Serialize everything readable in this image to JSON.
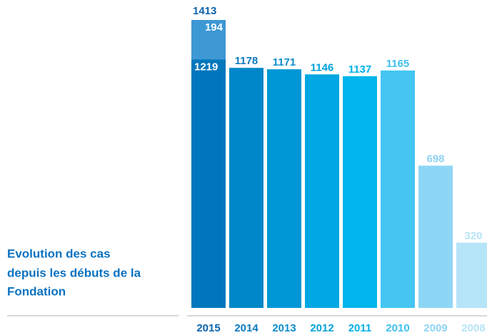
{
  "chart_data": {
    "type": "stacked_bar",
    "title": [
      "Evolution des cas",
      "depuis les débuts de la",
      "Fondation"
    ],
    "categories": [
      "2015",
      "2014",
      "2013",
      "2012",
      "2011",
      "2010",
      "2009",
      "2008"
    ],
    "series": [
      {
        "values": [
          1219,
          1178,
          1171,
          1146,
          1137,
          1165,
          698,
          320
        ],
        "colors": [
          "#0077bd",
          "#0087c9",
          "#0097d6",
          "#00a7e2",
          "#00b5ec",
          "#45c6f2",
          "#8ed6f5",
          "#b6e4f8"
        ]
      },
      {
        "values": [
          194,
          null,
          null,
          null,
          null,
          null,
          null,
          null
        ],
        "color": "#3d98d4"
      }
    ],
    "totals": [
      1413,
      null,
      null,
      null,
      null,
      null,
      null,
      null
    ],
    "label_colors": [
      "#0a64ae",
      "#0a7ac0",
      "#0a8ccd",
      "#00a2dc",
      "#00afe6",
      "#3ec0ee",
      "#8fd3f3",
      "#b6e4f8"
    ],
    "inside_label_color": "#ffffff"
  }
}
